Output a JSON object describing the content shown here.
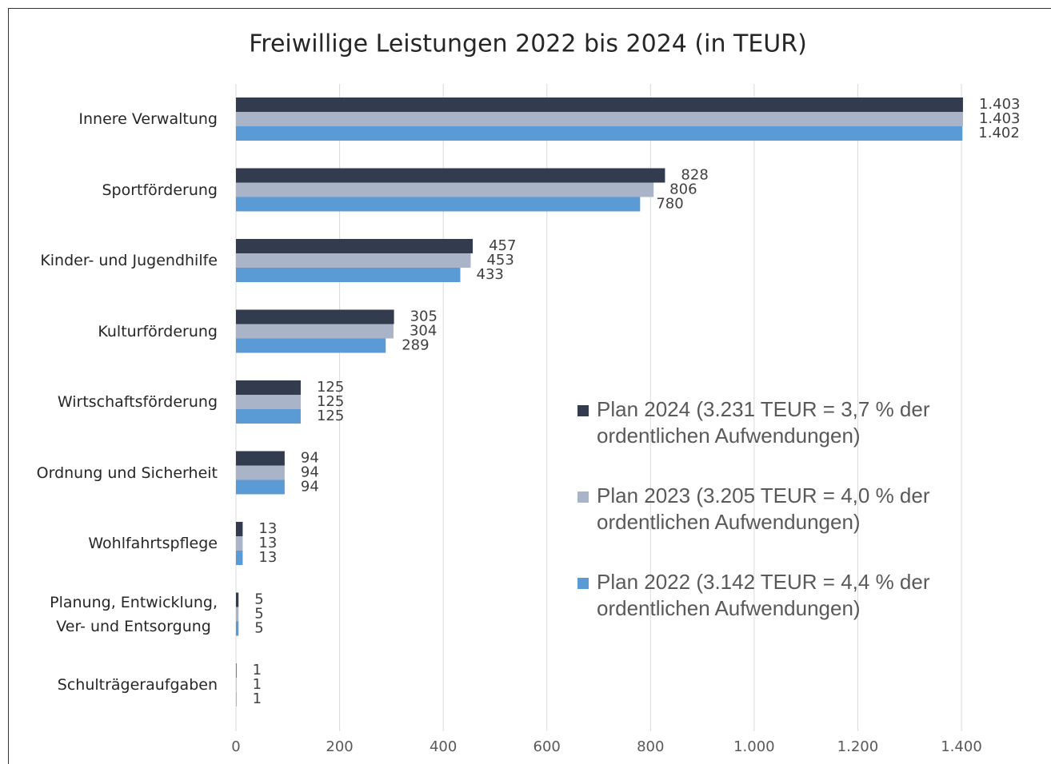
{
  "chart_data": {
    "type": "barh",
    "title": "Freiwillige Leistungen 2022 bis 2024 (in TEUR)",
    "categories": [
      "Innere Verwaltung",
      "Sportförderung",
      "Kinder- und Jugendhilfe",
      "Kulturförderung",
      "Wirtschaftsförderung",
      "Ordnung und Sicherheit",
      "Wohlfahrtspflege",
      "Planung, Entwicklung,\nVer- und Entsorgung",
      "Schulträgeraufgaben"
    ],
    "series": [
      {
        "name": "Plan 2024 (3.231 TEUR = 3,7 % der ordentlichen Aufwendungen)",
        "color": "#323c4e",
        "values": [
          1403,
          828,
          457,
          305,
          125,
          94,
          13,
          5,
          1
        ],
        "value_labels": [
          "1.403",
          "828",
          "457",
          "305",
          "125",
          "94",
          "13",
          "5",
          "1"
        ]
      },
      {
        "name": "Plan 2023 (3.205 TEUR = 4,0 % der ordentlichen Aufwendungen)",
        "color": "#aab4c8",
        "values": [
          1403,
          806,
          453,
          304,
          125,
          94,
          13,
          5,
          1
        ],
        "value_labels": [
          "1.403",
          "806",
          "453",
          "304",
          "125",
          "94",
          "13",
          "5",
          "1"
        ]
      },
      {
        "name": "Plan 2022 (3.142 TEUR = 4,4 % der ordentlichen Aufwendungen)",
        "color": "#5b9bd5",
        "values": [
          1402,
          780,
          433,
          289,
          125,
          94,
          13,
          5,
          1
        ],
        "value_labels": [
          "1.402",
          "780",
          "433",
          "289",
          "125",
          "94",
          "13",
          "5",
          "1"
        ]
      }
    ],
    "xlim": [
      0,
      1400
    ],
    "xticks": [
      0,
      200,
      400,
      600,
      800,
      {
        "value": 1000,
        "label": "1.000"
      },
      {
        "value": 1200,
        "label": "1.200"
      },
      {
        "value": 1400,
        "label": "1.400"
      }
    ],
    "grid": true
  }
}
